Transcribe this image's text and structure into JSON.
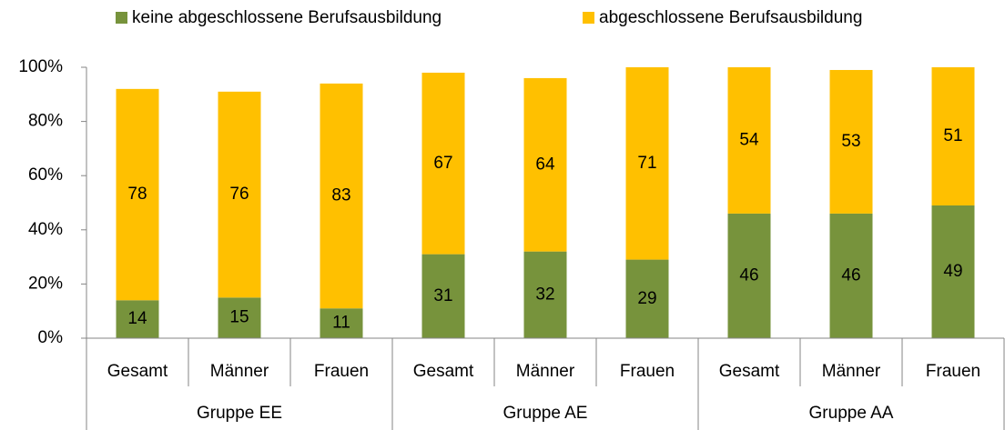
{
  "chart_data": {
    "type": "stacked_bar",
    "categories": [
      "Gesamt",
      "Männer",
      "Frauen",
      "Gesamt",
      "Männer",
      "Frauen",
      "Gesamt",
      "Männer",
      "Frauen"
    ],
    "groups": [
      "Gruppe EE",
      "Gruppe AE",
      "Gruppe AA"
    ],
    "series": [
      {
        "name": "keine abgeschlossene Berufsausbildung",
        "color": "#77933c",
        "values": [
          14,
          15,
          11,
          31,
          32,
          29,
          46,
          46,
          49
        ]
      },
      {
        "name": "abgeschlossene Berufsausbildung",
        "color": "#ffc000",
        "values": [
          78,
          76,
          83,
          67,
          64,
          71,
          54,
          53,
          51
        ]
      }
    ],
    "ylim": [
      0,
      100
    ],
    "yticks": [
      {
        "value": 0,
        "label": "0%"
      },
      {
        "value": 20,
        "label": "20%"
      },
      {
        "value": 40,
        "label": "40%"
      },
      {
        "value": 60,
        "label": "60%"
      },
      {
        "value": 80,
        "label": "80%"
      },
      {
        "value": 100,
        "label": "100%"
      }
    ],
    "legend": "top"
  }
}
